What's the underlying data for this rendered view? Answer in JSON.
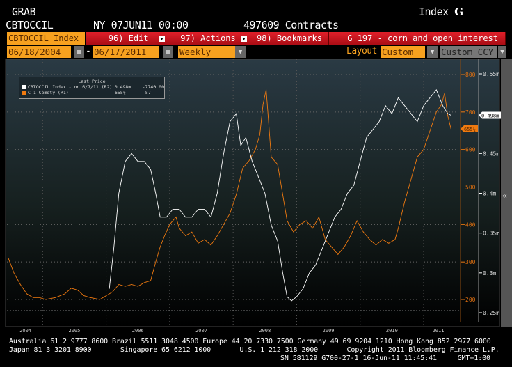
{
  "header": {
    "function": "GRAB",
    "ticker": "CBTOCCIL",
    "time": "NY 07JUN11 00:00",
    "value": "497609 Contracts",
    "market": "Index",
    "g_icon": "G"
  },
  "toolbar": {
    "security": "CBTOCCIL Index",
    "edit": "96) Edit",
    "actions": "97) Actions",
    "bookmarks": "98) Bookmarks",
    "title": "G 197 - corn and open interest"
  },
  "controls": {
    "start": "06/18/2004",
    "dash": "-",
    "end": "06/17/2011",
    "period": "Weekly",
    "layout_label": "Layout",
    "layout": "Custom",
    "ccy": "Custom CCY"
  },
  "side_toggle": "«",
  "chart_data": {
    "type": "line",
    "title": "G 197 - corn and open interest",
    "legend": {
      "header": "Last Price",
      "placement": "top-left",
      "entries": [
        {
          "name": "CBTOCCIL Index - on 6/7/11 (R2)",
          "last": "0.498m",
          "change": "-7740.00",
          "color": "#ffffff"
        },
        {
          "name": "C 1 Comdty (R1)",
          "last": "655¼",
          "change": "-57",
          "color": "#f07a10"
        }
      ]
    },
    "x_ticks": [
      "2004",
      "2005",
      "2006",
      "2007",
      "2008",
      "2009",
      "2010",
      "2011"
    ],
    "xlim": [
      2004.46,
      2011.46
    ],
    "y_right1": {
      "ylim": [
        150,
        850
      ],
      "ticks": [
        "800",
        "700",
        "600",
        "500",
        "400",
        "300",
        "200"
      ],
      "tick_values": [
        800,
        700,
        600,
        500,
        400,
        300,
        200
      ],
      "last_label": "655¼"
    },
    "y_right2": {
      "ylim": [
        0.24,
        0.56
      ],
      "ticks": [
        "0.55m",
        "0.45m",
        "0.4m",
        "0.35m",
        "0.3m",
        "0.25m"
      ],
      "tick_values": [
        0.55,
        0.45,
        0.4,
        0.35,
        0.3,
        0.25
      ],
      "last_label": "0.498m"
    },
    "series": [
      {
        "name": "C 1 Comdty",
        "axis": "R1",
        "color": "#f07a10",
        "x": [
          2004.46,
          2004.55,
          2004.65,
          2004.75,
          2004.85,
          2004.95,
          2005.05,
          2005.2,
          2005.35,
          2005.45,
          2005.55,
          2005.65,
          2005.75,
          2005.9,
          2006.0,
          2006.1,
          2006.2,
          2006.3,
          2006.4,
          2006.5,
          2006.6,
          2006.7,
          2006.78,
          2006.85,
          2006.92,
          2007.0,
          2007.1,
          2007.15,
          2007.25,
          2007.35,
          2007.45,
          2007.55,
          2007.65,
          2007.75,
          2007.85,
          2007.95,
          2008.05,
          2008.15,
          2008.25,
          2008.35,
          2008.42,
          2008.47,
          2008.52,
          2008.6,
          2008.7,
          2008.78,
          2008.85,
          2008.95,
          2009.05,
          2009.15,
          2009.25,
          2009.35,
          2009.45,
          2009.55,
          2009.65,
          2009.75,
          2009.85,
          2009.95,
          2010.05,
          2010.15,
          2010.25,
          2010.35,
          2010.45,
          2010.55,
          2010.6,
          2010.7,
          2010.8,
          2010.9,
          2011.0,
          2011.1,
          2011.2,
          2011.28,
          2011.33,
          2011.38,
          2011.43
        ],
        "y": [
          310,
          270,
          240,
          215,
          205,
          205,
          200,
          205,
          215,
          230,
          225,
          210,
          205,
          200,
          210,
          220,
          240,
          235,
          240,
          235,
          245,
          250,
          300,
          340,
          370,
          400,
          420,
          390,
          370,
          380,
          350,
          360,
          345,
          370,
          400,
          430,
          480,
          550,
          570,
          600,
          640,
          720,
          760,
          580,
          560,
          480,
          410,
          380,
          400,
          410,
          390,
          420,
          360,
          340,
          320,
          340,
          370,
          410,
          380,
          360,
          345,
          360,
          350,
          360,
          390,
          460,
          520,
          580,
          600,
          650,
          700,
          720,
          750,
          690,
          655
        ]
      },
      {
        "name": "CBTOCCIL Index",
        "axis": "R2",
        "color": "#ffffff",
        "x": [
          2006.05,
          2006.12,
          2006.2,
          2006.3,
          2006.4,
          2006.5,
          2006.6,
          2006.7,
          2006.78,
          2006.85,
          2006.95,
          2007.05,
          2007.15,
          2007.25,
          2007.35,
          2007.45,
          2007.55,
          2007.65,
          2007.75,
          2007.85,
          2007.95,
          2008.05,
          2008.12,
          2008.2,
          2008.3,
          2008.4,
          2008.5,
          2008.6,
          2008.7,
          2008.78,
          2008.85,
          2008.92,
          2009.0,
          2009.1,
          2009.2,
          2009.3,
          2009.4,
          2009.5,
          2009.6,
          2009.7,
          2009.8,
          2009.9,
          2010.0,
          2010.1,
          2010.2,
          2010.3,
          2010.4,
          2010.5,
          2010.6,
          2010.7,
          2010.8,
          2010.9,
          2011.0,
          2011.1,
          2011.2,
          2011.3,
          2011.38,
          2011.43
        ],
        "y": [
          0.28,
          0.33,
          0.4,
          0.44,
          0.45,
          0.44,
          0.44,
          0.43,
          0.4,
          0.37,
          0.37,
          0.38,
          0.38,
          0.37,
          0.37,
          0.38,
          0.38,
          0.37,
          0.4,
          0.45,
          0.49,
          0.5,
          0.46,
          0.47,
          0.44,
          0.42,
          0.4,
          0.36,
          0.34,
          0.3,
          0.27,
          0.265,
          0.27,
          0.28,
          0.3,
          0.31,
          0.33,
          0.35,
          0.37,
          0.38,
          0.4,
          0.41,
          0.44,
          0.47,
          0.48,
          0.49,
          0.51,
          0.5,
          0.52,
          0.51,
          0.5,
          0.49,
          0.51,
          0.52,
          0.53,
          0.51,
          0.5,
          0.498
        ]
      }
    ]
  },
  "footer": {
    "line1": "Australia 61 2 9777 8600 Brazil 5511 3048 4500 Europe 44 20 7330 7500 Germany 49 69 9204 1210 Hong Kong 852 2977 6000",
    "line2": "Japan 81 3 3201 8900       Singapore 65 6212 1000       U.S. 1 212 318 2000       Copyright 2011 Bloomberg Finance L.P.",
    "line3": "SN 581129 G700-27-1 16-Jun-11 11:45:41     GMT+1:00"
  }
}
